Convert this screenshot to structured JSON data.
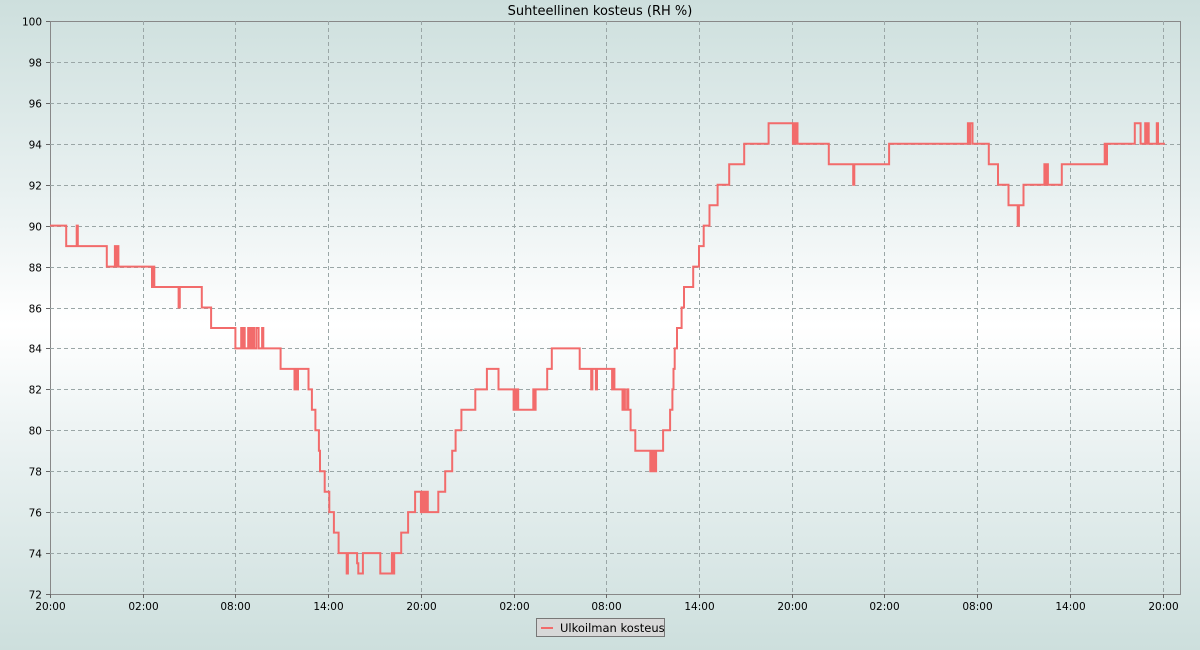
{
  "chart_data": {
    "type": "line",
    "title": "Suhteellinen kosteus (RH %)",
    "xlabel": "",
    "ylabel": "",
    "ylim": [
      72,
      100
    ],
    "yticks": [
      72,
      74,
      76,
      78,
      80,
      82,
      84,
      86,
      88,
      90,
      92,
      94,
      96,
      98,
      100
    ],
    "xlim": [
      0,
      48.75
    ],
    "xticks": [
      {
        "x": 0,
        "label": "20:00"
      },
      {
        "x": 4,
        "label": "02:00"
      },
      {
        "x": 8,
        "label": "08:00"
      },
      {
        "x": 12,
        "label": "14:00"
      },
      {
        "x": 16,
        "label": "20:00"
      },
      {
        "x": 20,
        "label": "02:00"
      },
      {
        "x": 24,
        "label": "08:00"
      },
      {
        "x": 28,
        "label": "14:00"
      },
      {
        "x": 32,
        "label": "20:00"
      },
      {
        "x": 36,
        "label": "02:00"
      },
      {
        "x": 40,
        "label": "08:00"
      },
      {
        "x": 44,
        "label": "14:00"
      },
      {
        "x": 48,
        "label": "20:00"
      }
    ],
    "grid": true,
    "legend": "bottom-center",
    "color": "#f26b6b",
    "series": [
      {
        "name": "Ulkoilman kosteus",
        "step": true,
        "points": [
          [
            0,
            90
          ],
          [
            0.65,
            90
          ],
          [
            0.7,
            89
          ],
          [
            1.1,
            89
          ],
          [
            1.15,
            90
          ],
          [
            1.2,
            89
          ],
          [
            2.4,
            89
          ],
          [
            2.45,
            88
          ],
          [
            2.75,
            88
          ],
          [
            2.8,
            89
          ],
          [
            2.85,
            88
          ],
          [
            2.9,
            89
          ],
          [
            2.95,
            88
          ],
          [
            4.35,
            88
          ],
          [
            4.4,
            87
          ],
          [
            4.45,
            88
          ],
          [
            4.5,
            87
          ],
          [
            5.5,
            87
          ],
          [
            5.55,
            86
          ],
          [
            5.6,
            87
          ],
          [
            6.5,
            87
          ],
          [
            6.55,
            86
          ],
          [
            6.9,
            86
          ],
          [
            6.95,
            85
          ],
          [
            7.95,
            85
          ],
          [
            8.0,
            84
          ],
          [
            8.2,
            84
          ],
          [
            8.25,
            85
          ],
          [
            8.3,
            84
          ],
          [
            8.35,
            85
          ],
          [
            8.4,
            84
          ],
          [
            8.5,
            84
          ],
          [
            8.55,
            85
          ],
          [
            8.6,
            84
          ],
          [
            8.65,
            85
          ],
          [
            8.7,
            84
          ],
          [
            8.75,
            85
          ],
          [
            8.8,
            84
          ],
          [
            8.9,
            85
          ],
          [
            9.0,
            84
          ],
          [
            9.1,
            84
          ],
          [
            9.15,
            85
          ],
          [
            9.2,
            84
          ],
          [
            9.9,
            84
          ],
          [
            9.95,
            83
          ],
          [
            10.5,
            83
          ],
          [
            10.55,
            82
          ],
          [
            10.6,
            83
          ],
          [
            10.65,
            82
          ],
          [
            10.7,
            83
          ],
          [
            11.1,
            83
          ],
          [
            11.15,
            82
          ],
          [
            11.25,
            82
          ],
          [
            11.3,
            81
          ],
          [
            11.4,
            81
          ],
          [
            11.45,
            80
          ],
          [
            11.55,
            80
          ],
          [
            11.6,
            79
          ],
          [
            11.65,
            78
          ],
          [
            11.8,
            78
          ],
          [
            11.85,
            77
          ],
          [
            12.0,
            77
          ],
          [
            12.05,
            76
          ],
          [
            12.2,
            76
          ],
          [
            12.25,
            75
          ],
          [
            12.4,
            75
          ],
          [
            12.45,
            74
          ],
          [
            12.75,
            74
          ],
          [
            12.8,
            73
          ],
          [
            12.85,
            74
          ],
          [
            13.0,
            74
          ],
          [
            13.05,
            74
          ],
          [
            13.2,
            74
          ],
          [
            13.25,
            73.5
          ],
          [
            13.3,
            73
          ],
          [
            13.45,
            73
          ],
          [
            13.5,
            74
          ],
          [
            14.2,
            74
          ],
          [
            14.25,
            73
          ],
          [
            14.7,
            73
          ],
          [
            14.75,
            74
          ],
          [
            14.8,
            73
          ],
          [
            14.85,
            74
          ],
          [
            15.1,
            74
          ],
          [
            15.15,
            75
          ],
          [
            15.4,
            75
          ],
          [
            15.45,
            76
          ],
          [
            15.7,
            76
          ],
          [
            15.75,
            77
          ],
          [
            15.95,
            77
          ],
          [
            16.0,
            76
          ],
          [
            16.05,
            77
          ],
          [
            16.1,
            76
          ],
          [
            16.15,
            77
          ],
          [
            16.2,
            76
          ],
          [
            16.25,
            77
          ],
          [
            16.3,
            76
          ],
          [
            16.7,
            76
          ],
          [
            16.75,
            77
          ],
          [
            17.0,
            77
          ],
          [
            17.05,
            78
          ],
          [
            17.3,
            78
          ],
          [
            17.35,
            79
          ],
          [
            17.45,
            79
          ],
          [
            17.5,
            80
          ],
          [
            17.7,
            80
          ],
          [
            17.75,
            81
          ],
          [
            18.3,
            81
          ],
          [
            18.35,
            82
          ],
          [
            18.8,
            82
          ],
          [
            18.85,
            83
          ],
          [
            19.3,
            83
          ],
          [
            19.35,
            82
          ],
          [
            19.95,
            82
          ],
          [
            20.0,
            81
          ],
          [
            20.05,
            82
          ],
          [
            20.1,
            81
          ],
          [
            20.15,
            82
          ],
          [
            20.2,
            81
          ],
          [
            20.8,
            81
          ],
          [
            20.85,
            82
          ],
          [
            20.9,
            81
          ],
          [
            20.95,
            82
          ],
          [
            21.4,
            82
          ],
          [
            21.45,
            83
          ],
          [
            21.6,
            83
          ],
          [
            21.65,
            84
          ],
          [
            22.8,
            84
          ],
          [
            22.85,
            83
          ],
          [
            23.3,
            83
          ],
          [
            23.35,
            82
          ],
          [
            23.4,
            83
          ],
          [
            23.5,
            83
          ],
          [
            23.55,
            82
          ],
          [
            23.6,
            83
          ],
          [
            24.2,
            83
          ],
          [
            24.25,
            82
          ],
          [
            24.3,
            83
          ],
          [
            24.35,
            82
          ],
          [
            24.65,
            82
          ],
          [
            24.7,
            81
          ],
          [
            24.75,
            82
          ],
          [
            24.8,
            81
          ],
          [
            24.9,
            82
          ],
          [
            24.95,
            81
          ],
          [
            25.05,
            80
          ],
          [
            25.2,
            80
          ],
          [
            25.25,
            79
          ],
          [
            25.85,
            79
          ],
          [
            25.9,
            78
          ],
          [
            25.95,
            79
          ],
          [
            26.0,
            78
          ],
          [
            26.05,
            79
          ],
          [
            26.1,
            78
          ],
          [
            26.15,
            79
          ],
          [
            26.4,
            79
          ],
          [
            26.45,
            80
          ],
          [
            26.7,
            80
          ],
          [
            26.75,
            81
          ],
          [
            26.85,
            82
          ],
          [
            26.9,
            83
          ],
          [
            26.95,
            84
          ],
          [
            27.05,
            85
          ],
          [
            27.2,
            85
          ],
          [
            27.25,
            86
          ],
          [
            27.35,
            87
          ],
          [
            27.7,
            87
          ],
          [
            27.75,
            88
          ],
          [
            27.95,
            88
          ],
          [
            28.0,
            89
          ],
          [
            28.15,
            89
          ],
          [
            28.2,
            90
          ],
          [
            28.4,
            90
          ],
          [
            28.45,
            91
          ],
          [
            28.75,
            91
          ],
          [
            28.8,
            92
          ],
          [
            29.25,
            92
          ],
          [
            29.3,
            93
          ],
          [
            29.9,
            93
          ],
          [
            29.95,
            94
          ],
          [
            30.95,
            94
          ],
          [
            31.0,
            95
          ],
          [
            32.0,
            95
          ],
          [
            32.05,
            94
          ],
          [
            32.1,
            95
          ],
          [
            32.15,
            94
          ],
          [
            32.2,
            95
          ],
          [
            32.25,
            94
          ],
          [
            33.55,
            94
          ],
          [
            33.6,
            93
          ],
          [
            34.6,
            93
          ],
          [
            34.65,
            92
          ],
          [
            34.7,
            93
          ],
          [
            36.15,
            93
          ],
          [
            36.2,
            94
          ],
          [
            39.55,
            94
          ],
          [
            39.6,
            95
          ],
          [
            39.65,
            94
          ],
          [
            39.7,
            95
          ],
          [
            39.75,
            95
          ],
          [
            39.8,
            94
          ],
          [
            40.45,
            94
          ],
          [
            40.5,
            93
          ],
          [
            40.85,
            93
          ],
          [
            40.9,
            92
          ],
          [
            41.3,
            92
          ],
          [
            41.35,
            91
          ],
          [
            41.7,
            91
          ],
          [
            41.75,
            90
          ],
          [
            41.8,
            91
          ],
          [
            41.95,
            91
          ],
          [
            42.0,
            92
          ],
          [
            42.85,
            92
          ],
          [
            42.9,
            93
          ],
          [
            42.95,
            92
          ],
          [
            43.0,
            93
          ],
          [
            43.05,
            92
          ],
          [
            43.6,
            92
          ],
          [
            43.65,
            93
          ],
          [
            45.45,
            93
          ],
          [
            45.5,
            94
          ],
          [
            45.55,
            93
          ],
          [
            45.6,
            94
          ],
          [
            46.75,
            94
          ],
          [
            46.8,
            95
          ],
          [
            47.0,
            95
          ],
          [
            47.05,
            94
          ],
          [
            47.2,
            94
          ],
          [
            47.25,
            95
          ],
          [
            47.3,
            94
          ],
          [
            47.35,
            95
          ],
          [
            47.4,
            94
          ],
          [
            47.7,
            94
          ],
          [
            47.75,
            95
          ],
          [
            47.8,
            94
          ],
          [
            48.1,
            94
          ]
        ]
      }
    ]
  }
}
